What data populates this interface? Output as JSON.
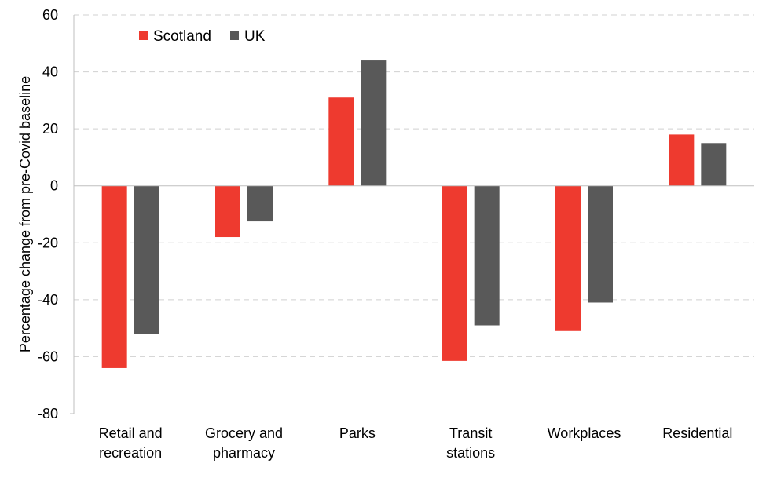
{
  "chart_data": {
    "type": "bar",
    "title": "",
    "xlabel": "",
    "ylabel": "Percentage change from pre-Covid baseline",
    "ylim": [
      -80,
      60
    ],
    "yticks": [
      60,
      40,
      20,
      0,
      -20,
      -40,
      -60,
      -80
    ],
    "grid": true,
    "legend_position": "top-left",
    "categories": [
      [
        "Retail and",
        "recreation"
      ],
      [
        "Grocery and",
        "pharmacy"
      ],
      [
        "Parks"
      ],
      [
        "Transit",
        "stations"
      ],
      [
        "Workplaces"
      ],
      [
        "Residential"
      ]
    ],
    "series": [
      {
        "name": "Scotland",
        "color": "#ee3a2f",
        "values": [
          -64,
          -18,
          31,
          -61.5,
          -51,
          18
        ]
      },
      {
        "name": "UK",
        "color": "#595959",
        "values": [
          -52,
          -12.5,
          44,
          -49,
          -41,
          15
        ]
      }
    ]
  }
}
